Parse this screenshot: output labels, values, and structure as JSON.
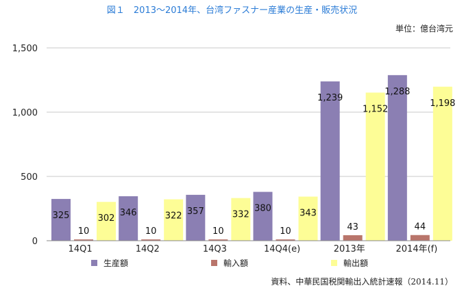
{
  "title": "図１　2013〜2014年、台湾ファスナー産業の生産・販売状況",
  "unit_label": "単位：億台湾元",
  "source_note": "資料、中華民国税関輸出入統計速報（2014.11）",
  "chart_data": {
    "type": "bar",
    "categories": [
      "14Q1",
      "14Q2",
      "14Q3",
      "14Q4(e)",
      "2013年",
      "2014年(f)"
    ],
    "series": [
      {
        "name": "生産額",
        "color": "#8b7fb3",
        "values": [
          325,
          346,
          357,
          380,
          1239,
          1288
        ],
        "labels": [
          "325",
          "346",
          "357",
          "380",
          "1,239",
          "1,288"
        ]
      },
      {
        "name": "輸入額",
        "color": "#b9756b",
        "values": [
          10,
          10,
          10,
          10,
          43,
          44
        ],
        "labels": [
          "10",
          "10",
          "10",
          "10",
          "43",
          "44"
        ]
      },
      {
        "name": "輸出額",
        "color": "#fdfd96",
        "values": [
          302,
          322,
          332,
          343,
          1152,
          1198
        ],
        "labels": [
          "302",
          "322",
          "332",
          "343",
          "1,152",
          "1,198"
        ]
      }
    ],
    "ylim": [
      0,
      1500
    ],
    "yticks": [
      0,
      500,
      1000,
      1500
    ],
    "ytick_labels": [
      "0",
      "500",
      "1,000",
      "1,500"
    ],
    "grid": true,
    "legend_position": "bottom"
  }
}
